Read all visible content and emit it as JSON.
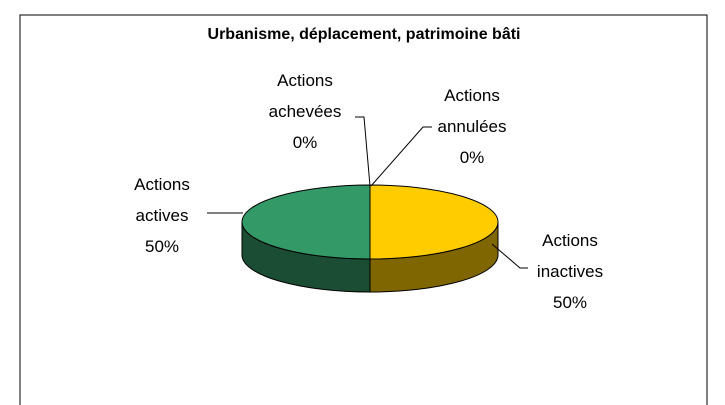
{
  "chart_data": {
    "type": "pie",
    "title": "Urbanisme, déplacement, patrimoine bâti",
    "categories": [
      "Actions achevées",
      "Actions annulées",
      "Actions inactives",
      "Actions actives"
    ],
    "values": [
      0,
      0,
      50,
      50
    ],
    "value_labels": [
      "0%",
      "0%",
      "50%",
      "50%"
    ],
    "colors": [
      "#9999ff",
      "#993366",
      "#ffcc00",
      "#339966"
    ]
  }
}
